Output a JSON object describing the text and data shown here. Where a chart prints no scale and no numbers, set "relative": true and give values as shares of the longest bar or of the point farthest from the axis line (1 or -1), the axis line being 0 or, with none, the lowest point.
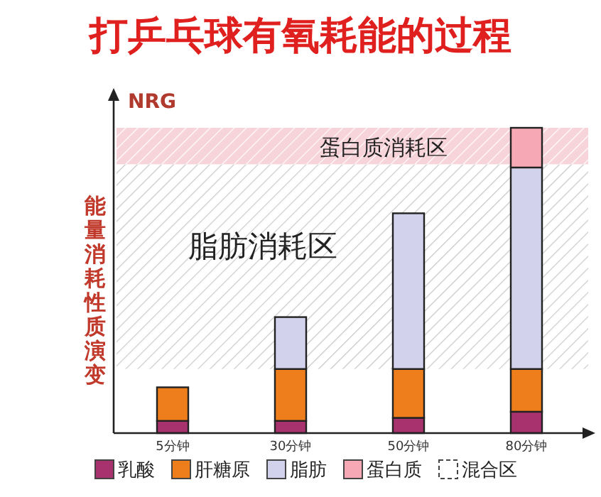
{
  "chart_data": {
    "type": "bar",
    "title": "打乒乓球有氧耗能的过程",
    "ylabel": "能量消耗性质演变",
    "annotations": [
      "NRG"
    ],
    "categories": [
      "5分钟",
      "30分钟",
      "50分钟",
      "80分钟"
    ],
    "stacked": true,
    "relative": true,
    "legend": "bottom",
    "series": [
      {
        "name": "乳酸",
        "color": "#a8326e",
        "values": [
          0.04,
          0.04,
          0.05,
          0.07
        ]
      },
      {
        "name": "肝糖原",
        "color": "#ee7d1b",
        "values": [
          0.11,
          0.17,
          0.16,
          0.14
        ]
      },
      {
        "name": "脂肪",
        "color": "#d2d2ec",
        "values": [
          null,
          0.17,
          0.51,
          0.66
        ]
      },
      {
        "name": "蛋白质",
        "color": "#f6a8b4",
        "values": [
          null,
          null,
          null,
          0.13
        ]
      },
      {
        "name": "混合区",
        "color": "#ffffff",
        "line_style": "dashed",
        "values": [
          null,
          null,
          null,
          null
        ]
      }
    ],
    "bands": [
      {
        "axis": "y",
        "from": 0.88,
        "to": 1,
        "label": "蛋白质消耗区",
        "color": "#f7d3da"
      },
      {
        "axis": "y",
        "from": 0.21,
        "to": 0.88,
        "label": "脂肪消耗区",
        "color": "#c8c8c8"
      }
    ]
  }
}
